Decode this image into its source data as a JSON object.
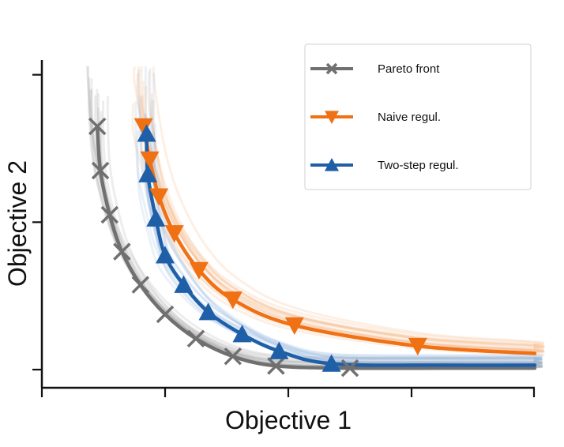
{
  "chart_data": {
    "type": "line",
    "xlabel": "Objective 1",
    "ylabel": "Objective 2",
    "xlim": [
      0,
      8
    ],
    "ylim": [
      0,
      4.2
    ],
    "x_ticks": [
      0,
      2,
      4,
      6,
      8
    ],
    "y_ticks": [
      0,
      2,
      4
    ],
    "tick_labels_shown": false,
    "grid": false,
    "legend_position": "top-right",
    "series": [
      {
        "name": "Pareto front",
        "color": "#707070",
        "marker": "x",
        "x": [
          0.9,
          0.95,
          1.1,
          1.3,
          1.6,
          2.0,
          2.5,
          3.1,
          3.8,
          5.0,
          6.5,
          8.0
        ],
        "y": [
          3.3,
          2.7,
          2.1,
          1.6,
          1.15,
          0.75,
          0.42,
          0.18,
          0.05,
          0.02,
          0.02,
          0.02
        ]
      },
      {
        "name": "Naive regul.",
        "color": "#f07014",
        "marker": "triangle-down",
        "x": [
          1.65,
          1.75,
          1.9,
          2.15,
          2.55,
          3.1,
          4.1,
          6.1,
          8.0
        ],
        "y": [
          3.3,
          2.85,
          2.35,
          1.85,
          1.35,
          0.95,
          0.6,
          0.32,
          0.22
        ]
      },
      {
        "name": "Two-step regul.",
        "color": "#1f5fa8",
        "marker": "triangle-up",
        "x": [
          1.7,
          1.72,
          1.85,
          2.0,
          2.3,
          2.7,
          3.25,
          3.85,
          4.7,
          6.5,
          8.0
        ],
        "y": [
          3.2,
          2.65,
          2.05,
          1.55,
          1.15,
          0.78,
          0.48,
          0.25,
          0.08,
          0.06,
          0.06
        ]
      }
    ],
    "background_samples": {
      "note_rendered_as": "faint per-trial curves around each series"
    }
  }
}
